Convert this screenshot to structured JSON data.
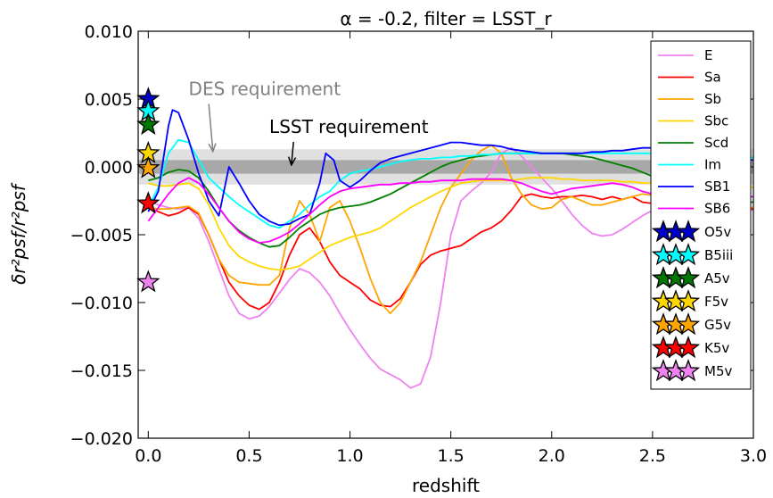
{
  "chart_data": {
    "type": "line",
    "title": "α = -0.2, filter = LSST_r",
    "xlabel": "redshift",
    "ylabel": "δr²psf/r²psf",
    "xlim": [
      -0.05,
      3.0
    ],
    "ylim": [
      -0.02,
      0.01
    ],
    "xticks": [
      "0.0",
      "0.5",
      "1.0",
      "1.5",
      "2.0",
      "2.5",
      "3.0"
    ],
    "yticks": [
      "−0.020",
      "−0.015",
      "−0.010",
      "−0.005",
      "0.000",
      "0.005",
      "0.010"
    ],
    "grid": false,
    "legend": "right",
    "bands": [
      {
        "name": "DES requirement",
        "ymin": -0.0013,
        "ymax": 0.0013,
        "color": "#e0e0e0"
      },
      {
        "name": "LSST requirement",
        "ymin": -0.0005,
        "ymax": 0.0005,
        "color": "#a8a8a8"
      }
    ],
    "annotations": [
      {
        "text": "DES requirement",
        "color": "#808080",
        "text_x": 0.2,
        "text_y": 0.0053,
        "arrow_to": [
          0.32,
          0.0012
        ]
      },
      {
        "text": "LSST requirement",
        "color": "#000000",
        "text_x": 0.6,
        "text_y": 0.0025,
        "arrow_to": [
          0.71,
          0.0002
        ]
      }
    ],
    "series": [
      {
        "name": "E",
        "color": "#ee82ee",
        "x": [
          0,
          0.05,
          0.1,
          0.15,
          0.2,
          0.25,
          0.3,
          0.35,
          0.4,
          0.45,
          0.5,
          0.55,
          0.6,
          0.65,
          0.7,
          0.75,
          0.8,
          0.85,
          0.9,
          0.95,
          1.0,
          1.05,
          1.1,
          1.15,
          1.2,
          1.25,
          1.3,
          1.35,
          1.4,
          1.45,
          1.5,
          1.55,
          1.6,
          1.65,
          1.7,
          1.75,
          1.8,
          1.85,
          1.9,
          1.95,
          2.0,
          2.05,
          2.1,
          2.15,
          2.2,
          2.25,
          2.3,
          2.35,
          2.4,
          2.45,
          2.5,
          2.55,
          2.6,
          2.65,
          2.7,
          2.75,
          2.8,
          2.85,
          2.9,
          2.95,
          3.0
        ],
        "values": [
          -0.0025,
          -0.0028,
          -0.003,
          -0.0031,
          -0.003,
          -0.0038,
          -0.0055,
          -0.0075,
          -0.0095,
          -0.0108,
          -0.0112,
          -0.011,
          -0.0103,
          -0.0093,
          -0.0083,
          -0.0075,
          -0.0078,
          -0.0085,
          -0.0095,
          -0.0108,
          -0.012,
          -0.0131,
          -0.0141,
          -0.0149,
          -0.0153,
          -0.0157,
          -0.0163,
          -0.016,
          -0.014,
          -0.01,
          -0.005,
          -0.0025,
          -0.0018,
          -0.0012,
          -0.0004,
          0.001,
          0.0014,
          0.0008,
          0.0,
          -0.0008,
          -0.0016,
          -0.0025,
          -0.0035,
          -0.0043,
          -0.0049,
          -0.0051,
          -0.005,
          -0.0046,
          -0.0041,
          -0.0036,
          -0.0032,
          -0.0029,
          -0.0027,
          -0.0026,
          -0.0026,
          -0.0027,
          -0.0028,
          -0.0029,
          -0.003,
          -0.0031,
          -0.0032
        ]
      },
      {
        "name": "Sa",
        "color": "#ff0000",
        "x": [
          0,
          0.05,
          0.1,
          0.15,
          0.2,
          0.25,
          0.3,
          0.35,
          0.4,
          0.45,
          0.5,
          0.55,
          0.6,
          0.65,
          0.7,
          0.75,
          0.8,
          0.85,
          0.9,
          0.95,
          1.0,
          1.05,
          1.1,
          1.15,
          1.2,
          1.25,
          1.3,
          1.35,
          1.4,
          1.45,
          1.5,
          1.55,
          1.6,
          1.65,
          1.7,
          1.75,
          1.8,
          1.85,
          1.9,
          1.95,
          2.0,
          2.05,
          2.1,
          2.15,
          2.2,
          2.25,
          2.3,
          2.35,
          2.4,
          2.45,
          2.5,
          2.55,
          2.6,
          2.65,
          2.7,
          2.75,
          2.8,
          2.85,
          2.9,
          2.95,
          3.0
        ],
        "values": [
          -0.003,
          -0.0033,
          -0.0036,
          -0.0034,
          -0.003,
          -0.0035,
          -0.005,
          -0.0068,
          -0.0085,
          -0.0095,
          -0.0102,
          -0.0105,
          -0.01,
          -0.0085,
          -0.0065,
          -0.005,
          -0.0045,
          -0.0055,
          -0.007,
          -0.008,
          -0.0085,
          -0.009,
          -0.0098,
          -0.0102,
          -0.0103,
          -0.0097,
          -0.0085,
          -0.0072,
          -0.0065,
          -0.0062,
          -0.006,
          -0.0058,
          -0.0053,
          -0.0048,
          -0.0045,
          -0.004,
          -0.0032,
          -0.0022,
          -0.002,
          -0.0022,
          -0.0023,
          -0.0022,
          -0.0022,
          -0.0021,
          -0.0022,
          -0.0024,
          -0.0022,
          -0.0024,
          -0.0022,
          -0.0026,
          -0.0027,
          -0.0025,
          -0.0027,
          -0.0026,
          -0.0028,
          -0.0028,
          -0.0029,
          -0.0027,
          -0.0028,
          -0.003,
          -0.0031
        ]
      },
      {
        "name": "Sb",
        "color": "#ffa500",
        "x": [
          0,
          0.05,
          0.1,
          0.15,
          0.2,
          0.25,
          0.3,
          0.35,
          0.4,
          0.45,
          0.5,
          0.55,
          0.6,
          0.65,
          0.7,
          0.75,
          0.8,
          0.85,
          0.9,
          0.95,
          1.0,
          1.05,
          1.1,
          1.15,
          1.2,
          1.25,
          1.3,
          1.35,
          1.4,
          1.45,
          1.5,
          1.55,
          1.6,
          1.65,
          1.7,
          1.75,
          1.8,
          1.85,
          1.9,
          1.95,
          2.0,
          2.05,
          2.1,
          2.15,
          2.2,
          2.25,
          2.3,
          2.35,
          2.4,
          2.45,
          2.5,
          2.55,
          2.6,
          2.65,
          2.7,
          2.75,
          2.8,
          2.85,
          2.9,
          2.95,
          3.0
        ],
        "values": [
          -0.003,
          -0.0031,
          -0.0031,
          -0.003,
          -0.0029,
          -0.0034,
          -0.005,
          -0.0068,
          -0.008,
          -0.0085,
          -0.0086,
          -0.0087,
          -0.0087,
          -0.008,
          -0.0045,
          -0.0025,
          -0.0035,
          -0.0055,
          -0.003,
          -0.0025,
          -0.004,
          -0.006,
          -0.0082,
          -0.01,
          -0.0108,
          -0.01,
          -0.0085,
          -0.007,
          -0.005,
          -0.003,
          -0.0015,
          -0.0005,
          0.0005,
          0.0012,
          0.0016,
          0.001,
          -0.0008,
          -0.002,
          -0.0028,
          -0.0031,
          -0.003,
          -0.0024,
          -0.0022,
          -0.0025,
          -0.0028,
          -0.0028,
          -0.0026,
          -0.0024,
          -0.0022,
          -0.002,
          -0.0021,
          -0.0023,
          -0.0024,
          -0.0025,
          -0.0026,
          -0.0027,
          -0.0028,
          -0.0028,
          -0.0029,
          -0.003,
          -0.003
        ]
      },
      {
        "name": "Sbc",
        "color": "#ffd700",
        "x": [
          0,
          0.05,
          0.1,
          0.15,
          0.2,
          0.25,
          0.3,
          0.35,
          0.4,
          0.45,
          0.5,
          0.55,
          0.6,
          0.65,
          0.7,
          0.75,
          0.8,
          0.85,
          0.9,
          0.95,
          1.0,
          1.05,
          1.1,
          1.15,
          1.2,
          1.25,
          1.3,
          1.35,
          1.4,
          1.45,
          1.5,
          1.55,
          1.6,
          1.65,
          1.7,
          1.75,
          1.8,
          1.85,
          1.9,
          1.95,
          2.0,
          2.05,
          2.1,
          2.15,
          2.2,
          2.25,
          2.3,
          2.35,
          2.4,
          2.45,
          2.5,
          2.55,
          2.6,
          2.65,
          2.7,
          2.75,
          2.8,
          2.85,
          2.9,
          2.95,
          3.0
        ],
        "values": [
          -0.0012,
          -0.0014,
          -0.0014,
          -0.0013,
          -0.0012,
          -0.0016,
          -0.0028,
          -0.0045,
          -0.0058,
          -0.0066,
          -0.007,
          -0.0073,
          -0.0075,
          -0.0076,
          -0.0075,
          -0.0073,
          -0.0068,
          -0.0063,
          -0.0058,
          -0.0055,
          -0.0052,
          -0.005,
          -0.0048,
          -0.0045,
          -0.004,
          -0.0035,
          -0.003,
          -0.0026,
          -0.0022,
          -0.0018,
          -0.0015,
          -0.0012,
          -0.0011,
          -0.001,
          -0.001,
          -0.001,
          -0.001,
          -0.0009,
          -0.0008,
          -0.0008,
          -0.0008,
          -0.0009,
          -0.0009,
          -0.001,
          -0.001,
          -0.001,
          -0.001,
          -0.0011,
          -0.0011,
          -0.0012,
          -0.0012,
          -0.0012,
          -0.0013,
          -0.0013,
          -0.0013,
          -0.0014,
          -0.0014,
          -0.0014,
          -0.0015,
          -0.0015,
          -0.0015
        ]
      },
      {
        "name": "Scd",
        "color": "#008000",
        "x": [
          0,
          0.05,
          0.1,
          0.15,
          0.2,
          0.25,
          0.3,
          0.35,
          0.4,
          0.45,
          0.5,
          0.55,
          0.6,
          0.65,
          0.7,
          0.75,
          0.8,
          0.85,
          0.9,
          0.95,
          1.0,
          1.05,
          1.1,
          1.15,
          1.2,
          1.25,
          1.3,
          1.35,
          1.4,
          1.45,
          1.5,
          1.55,
          1.6,
          1.65,
          1.7,
          1.75,
          1.8,
          1.85,
          1.9,
          1.95,
          2.0,
          2.05,
          2.1,
          2.15,
          2.2,
          2.25,
          2.3,
          2.35,
          2.4,
          2.45,
          2.5,
          2.55,
          2.6,
          2.65,
          2.7,
          2.75,
          2.8,
          2.85,
          2.9,
          2.95,
          3.0
        ],
        "values": [
          -0.001,
          -0.0008,
          -0.0004,
          -0.0002,
          -0.0003,
          -0.0008,
          -0.0018,
          -0.003,
          -0.004,
          -0.0047,
          -0.0052,
          -0.0056,
          -0.0059,
          -0.0058,
          -0.0052,
          -0.0045,
          -0.004,
          -0.0035,
          -0.0032,
          -0.003,
          -0.0029,
          -0.0028,
          -0.0026,
          -0.0023,
          -0.002,
          -0.0016,
          -0.0012,
          -0.0008,
          -0.0004,
          0.0,
          0.0003,
          0.0005,
          0.0007,
          0.0008,
          0.0009,
          0.001,
          0.001,
          0.001,
          0.001,
          0.001,
          0.001,
          0.001,
          0.0009,
          0.0008,
          0.0007,
          0.0005,
          0.0003,
          0.0001,
          -0.0001,
          -0.0004,
          -0.0007,
          -0.001,
          -0.0013,
          -0.0016,
          -0.0019,
          -0.0021,
          -0.0023,
          -0.0024,
          -0.0025,
          -0.0026,
          -0.0026
        ]
      },
      {
        "name": "Im",
        "color": "#00ffff",
        "x": [
          0,
          0.05,
          0.1,
          0.15,
          0.2,
          0.25,
          0.3,
          0.35,
          0.4,
          0.45,
          0.5,
          0.55,
          0.6,
          0.65,
          0.7,
          0.75,
          0.8,
          0.85,
          0.9,
          0.95,
          1.0,
          1.05,
          1.1,
          1.15,
          1.2,
          1.25,
          1.3,
          1.35,
          1.4,
          1.45,
          1.5,
          1.55,
          1.6,
          1.65,
          1.7,
          1.75,
          1.8,
          1.85,
          1.9,
          1.95,
          2.0,
          2.05,
          2.1,
          2.15,
          2.2,
          2.25,
          2.3,
          2.35,
          2.4,
          2.45,
          2.5,
          2.55,
          2.6,
          2.65,
          2.7,
          2.75,
          2.8,
          2.85,
          2.9,
          2.95,
          3.0
        ],
        "values": [
          -0.003,
          -0.0015,
          0.001,
          0.002,
          0.0018,
          0.0005,
          -0.0008,
          -0.0015,
          -0.0022,
          -0.0028,
          -0.0033,
          -0.0038,
          -0.0043,
          -0.0045,
          -0.004,
          -0.0035,
          -0.0028,
          -0.0022,
          -0.0018,
          -0.001,
          -0.0005,
          -0.0003,
          -0.0002,
          0.0,
          0.0002,
          0.0004,
          0.0005,
          0.0006,
          0.0006,
          0.0007,
          0.0007,
          0.0008,
          0.0008,
          0.0009,
          0.0009,
          0.001,
          0.001,
          0.001,
          0.001,
          0.001,
          0.001,
          0.001,
          0.001,
          0.001,
          0.001,
          0.001,
          0.001,
          0.001,
          0.001,
          0.001,
          0.001,
          0.001,
          0.0009,
          0.0009,
          0.0009,
          0.0009,
          0.0008,
          0.0008,
          0.0008,
          0.0007,
          0.0007
        ]
      },
      {
        "name": "SB1",
        "color": "#0000ff",
        "x": [
          0,
          0.05,
          0.1,
          0.12,
          0.15,
          0.2,
          0.25,
          0.3,
          0.35,
          0.4,
          0.45,
          0.5,
          0.55,
          0.6,
          0.65,
          0.7,
          0.75,
          0.8,
          0.85,
          0.88,
          0.92,
          0.95,
          1.0,
          1.05,
          1.1,
          1.15,
          1.2,
          1.25,
          1.3,
          1.35,
          1.4,
          1.45,
          1.5,
          1.55,
          1.6,
          1.65,
          1.7,
          1.75,
          1.8,
          1.85,
          1.9,
          1.95,
          2.0,
          2.05,
          2.1,
          2.15,
          2.2,
          2.25,
          2.3,
          2.35,
          2.4,
          2.45,
          2.5,
          2.55,
          2.6,
          2.65,
          2.7,
          2.75,
          2.8,
          2.85,
          2.9,
          2.95,
          3.0
        ],
        "values": [
          -0.0033,
          -0.0018,
          0.003,
          0.0042,
          0.004,
          0.002,
          -0.0005,
          -0.0025,
          -0.0036,
          0.0,
          -0.0012,
          -0.0025,
          -0.0035,
          -0.004,
          -0.0043,
          -0.0042,
          -0.0038,
          -0.0035,
          -0.0012,
          0.001,
          0.0005,
          -0.001,
          -0.0015,
          -0.001,
          -0.0003,
          0.0003,
          0.0006,
          0.0008,
          0.001,
          0.0012,
          0.0014,
          0.0016,
          0.0018,
          0.0018,
          0.0017,
          0.0016,
          0.0016,
          0.0015,
          0.0013,
          0.0012,
          0.0011,
          0.001,
          0.001,
          0.001,
          0.001,
          0.001,
          0.0011,
          0.0011,
          0.0012,
          0.0012,
          0.0013,
          0.0014,
          0.0014,
          0.0013,
          0.0012,
          0.0011,
          0.001,
          0.0009,
          0.0008,
          0.0007,
          0.0006,
          0.0006,
          0.0005
        ]
      },
      {
        "name": "SB6",
        "color": "#ff00ff",
        "x": [
          0,
          0.05,
          0.1,
          0.15,
          0.2,
          0.25,
          0.3,
          0.35,
          0.4,
          0.45,
          0.5,
          0.55,
          0.6,
          0.65,
          0.7,
          0.75,
          0.8,
          0.85,
          0.9,
          0.95,
          1.0,
          1.05,
          1.1,
          1.15,
          1.2,
          1.25,
          1.3,
          1.35,
          1.4,
          1.45,
          1.5,
          1.55,
          1.6,
          1.65,
          1.7,
          1.75,
          1.8,
          1.85,
          1.9,
          1.95,
          2.0,
          2.05,
          2.1,
          2.15,
          2.2,
          2.25,
          2.3,
          2.35,
          2.4,
          2.45,
          2.5,
          2.55,
          2.6,
          2.65,
          2.7,
          2.75,
          2.8,
          2.85,
          2.9,
          2.95,
          3.0
        ],
        "values": [
          -0.004,
          -0.003,
          -0.002,
          -0.0012,
          -0.0008,
          -0.0012,
          -0.002,
          -0.003,
          -0.004,
          -0.0048,
          -0.0053,
          -0.0056,
          -0.0055,
          -0.0052,
          -0.0048,
          -0.0042,
          -0.0035,
          -0.0028,
          -0.0022,
          -0.0018,
          -0.0016,
          -0.0015,
          -0.0014,
          -0.0013,
          -0.0013,
          -0.0012,
          -0.0012,
          -0.0011,
          -0.0011,
          -0.001,
          -0.001,
          -0.001,
          -0.0009,
          -0.0009,
          -0.0009,
          -0.0009,
          -0.001,
          -0.0012,
          -0.0015,
          -0.0018,
          -0.002,
          -0.0018,
          -0.0016,
          -0.0015,
          -0.0014,
          -0.0013,
          -0.0012,
          -0.0013,
          -0.0015,
          -0.0018,
          -0.002,
          -0.0021,
          -0.002,
          -0.0019,
          -0.0018,
          -0.0018,
          -0.0019,
          -0.002,
          -0.0021,
          -0.0022,
          -0.0022
        ]
      }
    ],
    "stars": [
      {
        "name": "O5v",
        "color": "#0000cc",
        "x": 0.0,
        "y": 0.005
      },
      {
        "name": "B5iii",
        "color": "#00ffff",
        "x": 0.0,
        "y": 0.0041
      },
      {
        "name": "A5v",
        "color": "#007700",
        "x": 0.0,
        "y": 0.0031
      },
      {
        "name": "F5v",
        "color": "#ffd700",
        "x": 0.0,
        "y": 0.001
      },
      {
        "name": "G5v",
        "color": "#ffa500",
        "x": 0.0,
        "y": -0.0001
      },
      {
        "name": "K5v",
        "color": "#ff0000",
        "x": 0.0,
        "y": -0.0027
      },
      {
        "name": "M5v",
        "color": "#ee82ee",
        "x": 0.0,
        "y": -0.0085
      }
    ]
  }
}
